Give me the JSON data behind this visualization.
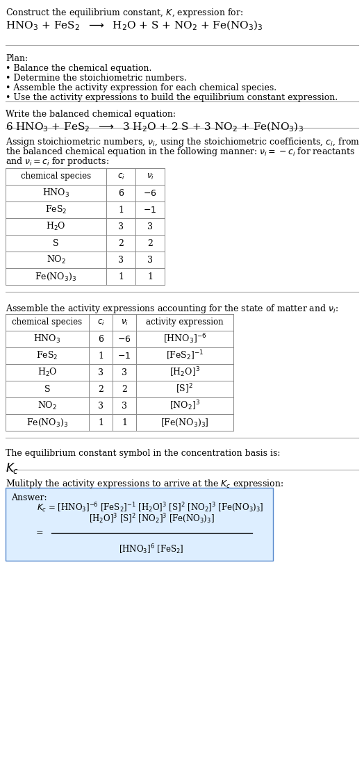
{
  "bg_color": "#ffffff",
  "text_color": "#000000",
  "table_border_color": "#888888",
  "separator_color": "#aaaaaa",
  "answer_box_color": "#ddeeff",
  "answer_box_border": "#5588cc",
  "sections": {
    "title_text": "Construct the equilibrium constant, $K$, expression for:",
    "title_eq": "HNO$_3$ + FeS$_2$  $\\longrightarrow$  H$_2$O + S + NO$_2$ + Fe(NO$_3$)$_3$",
    "plan_header": "Plan:",
    "plan_items": [
      "• Balance the chemical equation.",
      "• Determine the stoichiometric numbers.",
      "• Assemble the activity expression for each chemical species.",
      "• Use the activity expressions to build the equilibrium constant expression."
    ],
    "balanced_header": "Write the balanced chemical equation:",
    "balanced_eq": "6 HNO$_3$ + FeS$_2$  $\\longrightarrow$  3 H$_2$O + 2 S + 3 NO$_2$ + Fe(NO$_3$)$_3$",
    "stoich_text": [
      "Assign stoichiometric numbers, $\\nu_i$, using the stoichiometric coefficients, $c_i$, from",
      "the balanced chemical equation in the following manner: $\\nu_i = -c_i$ for reactants",
      "and $\\nu_i = c_i$ for products:"
    ],
    "table1_headers": [
      "chemical species",
      "$c_i$",
      "$\\nu_i$"
    ],
    "table1_rows": [
      [
        "HNO$_3$",
        "6",
        "$-6$"
      ],
      [
        "FeS$_2$",
        "1",
        "$-1$"
      ],
      [
        "H$_2$O",
        "3",
        "3"
      ],
      [
        "S",
        "2",
        "2"
      ],
      [
        "NO$_2$",
        "3",
        "3"
      ],
      [
        "Fe(NO$_3$)$_3$",
        "1",
        "1"
      ]
    ],
    "activity_text": "Assemble the activity expressions accounting for the state of matter and $\\nu_i$:",
    "table2_headers": [
      "chemical species",
      "$c_i$",
      "$\\nu_i$",
      "activity expression"
    ],
    "table2_rows": [
      [
        "HNO$_3$",
        "6",
        "$-6$",
        "[HNO$_3$]$^{-6}$"
      ],
      [
        "FeS$_2$",
        "1",
        "$-1$",
        "[FeS$_2$]$^{-1}$"
      ],
      [
        "H$_2$O",
        "3",
        "3",
        "[H$_2$O]$^3$"
      ],
      [
        "S",
        "2",
        "2",
        "[S]$^2$"
      ],
      [
        "NO$_2$",
        "3",
        "3",
        "[NO$_2$]$^3$"
      ],
      [
        "Fe(NO$_3$)$_3$",
        "1",
        "1",
        "[Fe(NO$_3$)$_3$]"
      ]
    ],
    "kc_header": "The equilibrium constant symbol in the concentration basis is:",
    "kc_symbol": "$K_c$",
    "multiply_header": "Mulitply the activity expressions to arrive at the $K_c$ expression:",
    "answer_label": "Answer:",
    "ans_line1a": "$K_c$",
    "ans_line1b": " = [HNO$_3$]$^{-6}$ [FeS$_2$]$^{-1}$ [H$_2$O]$^3$ [S]$^2$ [NO$_2$]$^3$ [Fe(NO$_3$)$_3$]",
    "ans_eq_sign": "=",
    "ans_num": "[H$_2$O]$^3$ [S]$^2$ [NO$_2$]$^3$ [Fe(NO$_3$)$_3$]",
    "ans_den": "[HNO$_3$]$^6$ [FeS$_2$]"
  }
}
